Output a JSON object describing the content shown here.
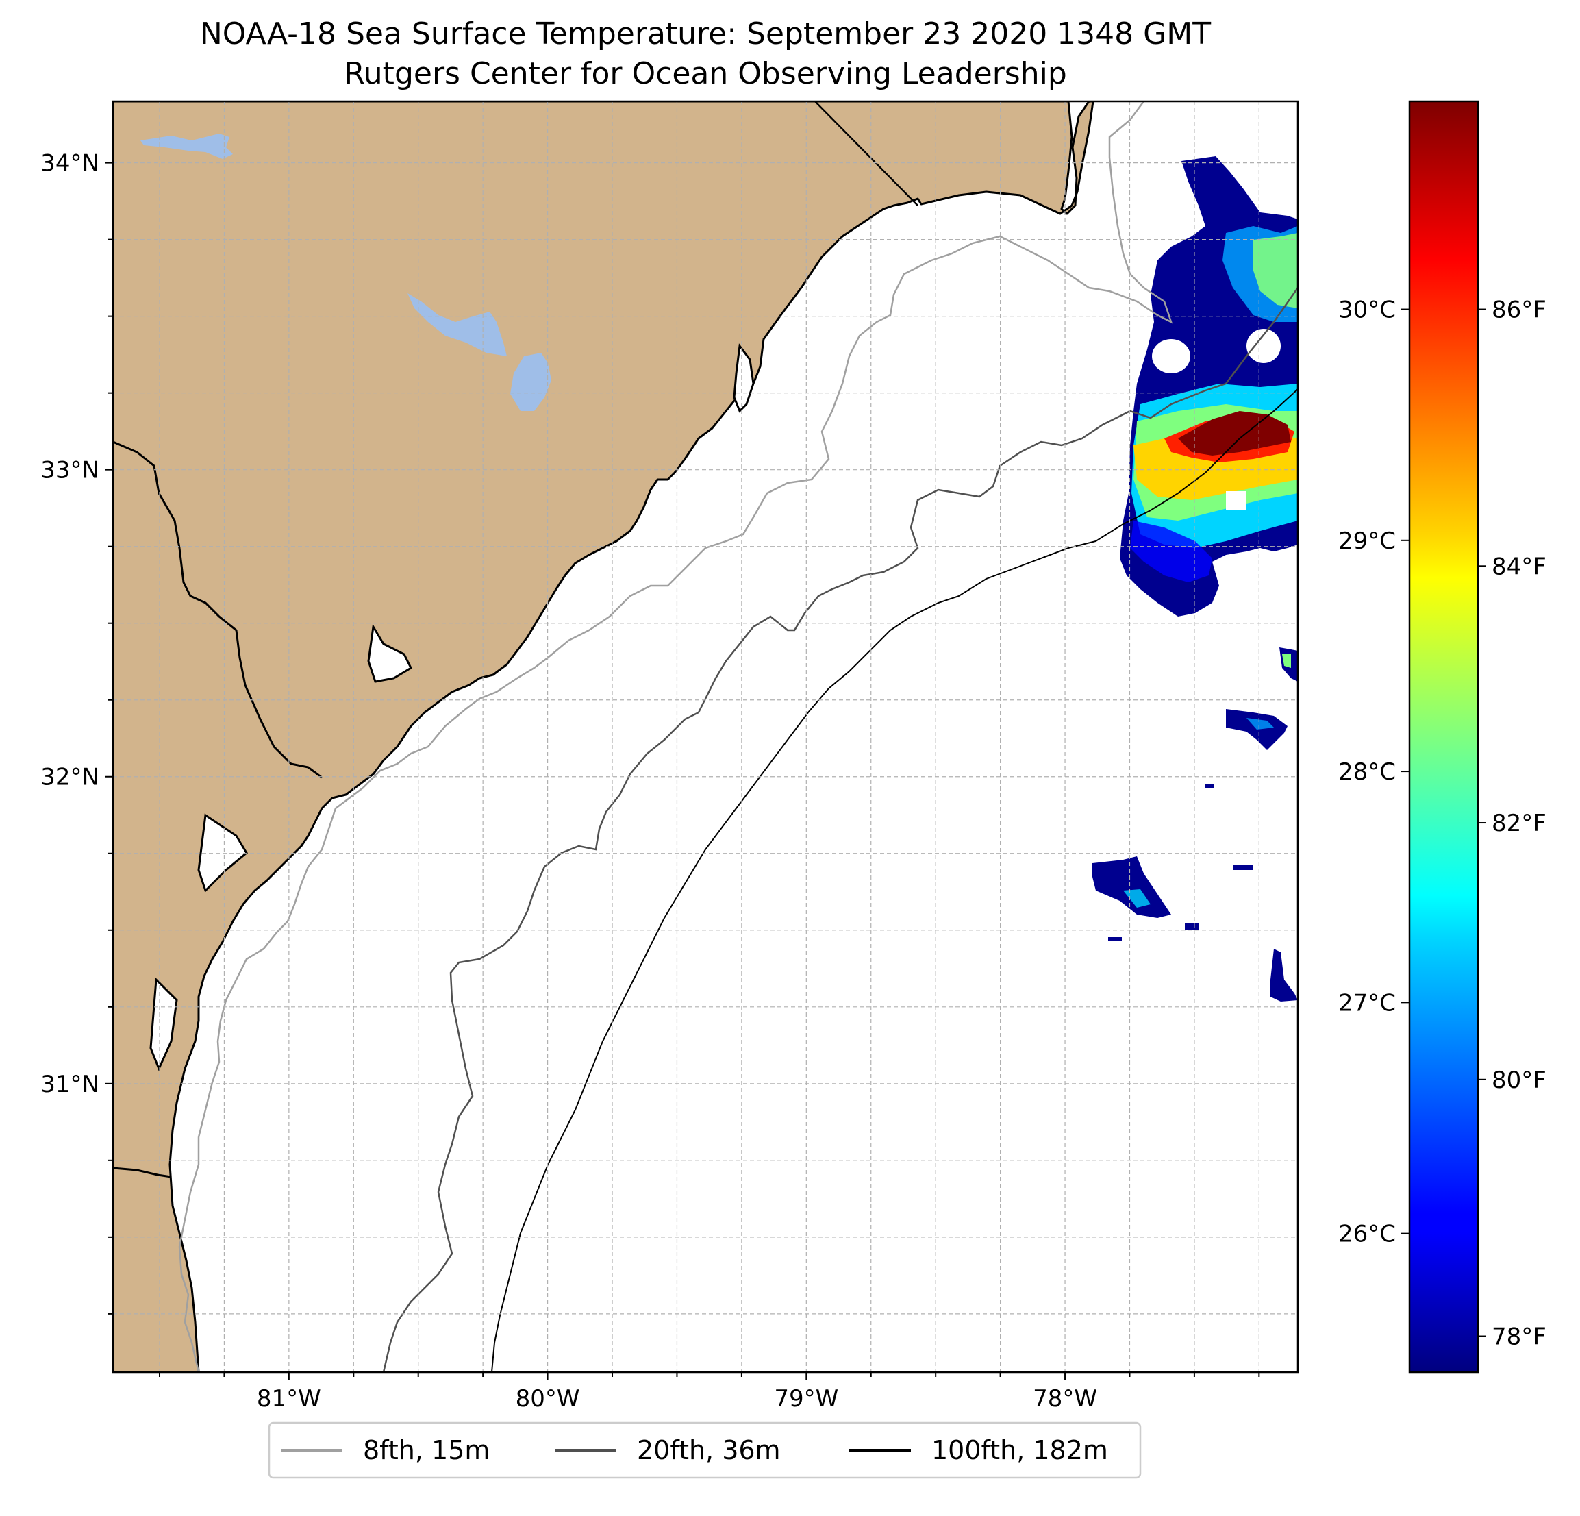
{
  "title": {
    "line1": "NOAA-18 Sea Surface Temperature: September 23 2020 1348 GMT",
    "line2": "Rutgers Center for Ocean Observing Leadership"
  },
  "colors": {
    "land": "#d2b48c",
    "lake": "#9fbee8",
    "ocean": "#ffffff",
    "contour_8fth": "#a0a0a0",
    "contour_20fth": "#505050",
    "contour_100fth": "#000000",
    "grid": "#b0b0b0"
  },
  "map": {
    "lon_range": [
      -81.68,
      -77.1
    ],
    "lat_range": [
      30.06,
      34.2
    ],
    "lat_ticks": [
      {
        "value": 34,
        "label": "34°N"
      },
      {
        "value": 33,
        "label": "33°N"
      },
      {
        "value": 32,
        "label": "32°N"
      },
      {
        "value": 31,
        "label": "31°N"
      }
    ],
    "lon_ticks": [
      {
        "value": -81,
        "label": "81°W"
      },
      {
        "value": -80,
        "label": "80°W"
      },
      {
        "value": -79,
        "label": "79°W"
      },
      {
        "value": -78,
        "label": "78°W"
      }
    ],
    "grid": true
  },
  "colorbar": {
    "colormap": "jet",
    "range_c": [
      25.4,
      30.9
    ],
    "celsius_ticks": [
      {
        "value": 30,
        "label": "30°C"
      },
      {
        "value": 29,
        "label": "29°C"
      },
      {
        "value": 28,
        "label": "28°C"
      },
      {
        "value": 27,
        "label": "27°C"
      },
      {
        "value": 26,
        "label": "26°C"
      }
    ],
    "fahrenheit_ticks": [
      {
        "value": 86,
        "label": "86°F"
      },
      {
        "value": 84,
        "label": "84°F"
      },
      {
        "value": 82,
        "label": "82°F"
      },
      {
        "value": 80,
        "label": "80°F"
      },
      {
        "value": 78,
        "label": "78°F"
      }
    ]
  },
  "legend": {
    "placement": "bottom-center",
    "items": [
      {
        "label": "8fth, 15m",
        "color": "#a0a0a0"
      },
      {
        "label": "20fth, 36m",
        "color": "#505050"
      },
      {
        "label": "100fth, 182m",
        "color": "#000000"
      }
    ]
  }
}
